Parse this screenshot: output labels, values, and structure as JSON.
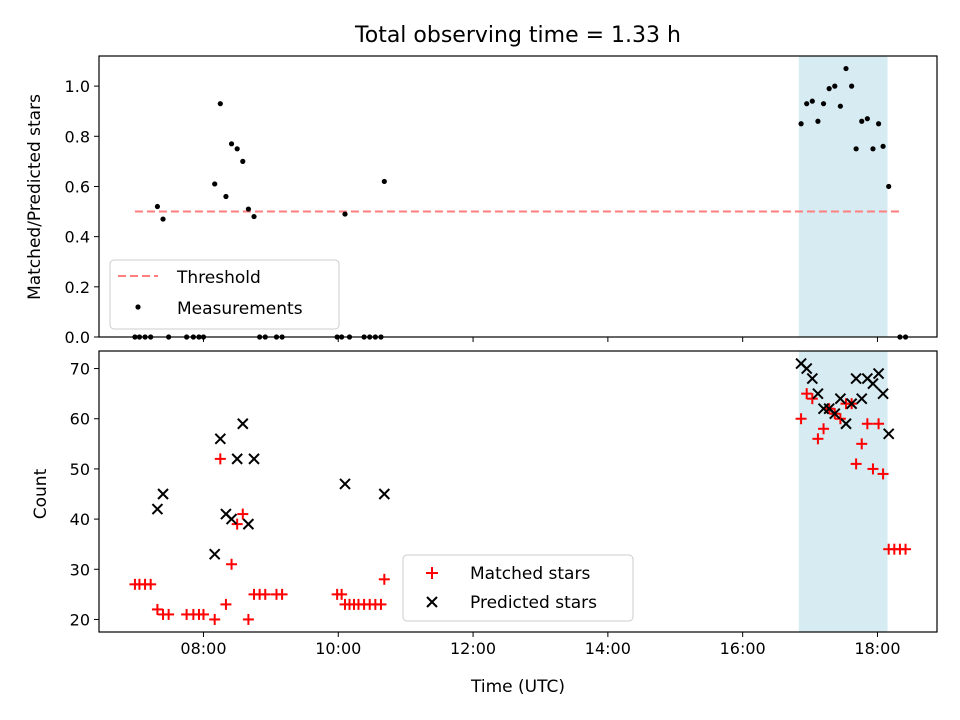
{
  "chart_data": [
    {
      "type": "scatter",
      "title": "Total observing time = 1.33 h",
      "xlabel": "",
      "ylabel": "Matched/Predicted stars",
      "xlim": [
        "06:27",
        "18:53"
      ],
      "ylim": [
        0,
        1.12
      ],
      "yticks": [
        "0.0",
        "0.2",
        "0.4",
        "0.6",
        "0.8",
        "1.0"
      ],
      "xticks": [
        "08:00",
        "10:00",
        "12:00",
        "14:00",
        "16:00",
        "18:00"
      ],
      "xtick_labels_shown": false,
      "shaded_span": [
        "16:50",
        "18:09"
      ],
      "shaded_color": "#add8e6",
      "threshold": {
        "name": "Threshold",
        "y": 0.5,
        "x_start": "06:59",
        "x_end": "18:21",
        "color": "#ff7f7f",
        "style": "dashed"
      },
      "series": [
        {
          "name": "Measurements",
          "color": "#000000",
          "marker": "dot",
          "points": [
            [
              "06:59",
              0
            ],
            [
              "07:03",
              0
            ],
            [
              "07:08",
              0
            ],
            [
              "07:13",
              0
            ],
            [
              "07:19",
              0.52
            ],
            [
              "07:24",
              0.47
            ],
            [
              "07:29",
              0
            ],
            [
              "07:45",
              0
            ],
            [
              "07:51",
              0
            ],
            [
              "07:56",
              0
            ],
            [
              "08:00",
              0
            ],
            [
              "08:10",
              0.61
            ],
            [
              "08:15",
              0.93
            ],
            [
              "08:20",
              0.56
            ],
            [
              "08:25",
              0.77
            ],
            [
              "08:30",
              0.75
            ],
            [
              "08:35",
              0.7
            ],
            [
              "08:40",
              0.51
            ],
            [
              "08:45",
              0.48
            ],
            [
              "08:50",
              0
            ],
            [
              "08:55",
              0
            ],
            [
              "09:05",
              0
            ],
            [
              "09:10",
              0
            ],
            [
              "09:59",
              0
            ],
            [
              "10:03",
              0
            ],
            [
              "10:06",
              0.49
            ],
            [
              "10:10",
              0
            ],
            [
              "10:23",
              0
            ],
            [
              "10:28",
              0
            ],
            [
              "10:33",
              0
            ],
            [
              "10:38",
              0
            ],
            [
              "10:41",
              0.62
            ],
            [
              "16:52",
              0.85
            ],
            [
              "16:57",
              0.93
            ],
            [
              "17:02",
              0.94
            ],
            [
              "17:07",
              0.86
            ],
            [
              "17:12",
              0.93
            ],
            [
              "17:17",
              0.99
            ],
            [
              "17:22",
              1.0
            ],
            [
              "17:27",
              0.92
            ],
            [
              "17:32",
              1.07
            ],
            [
              "17:37",
              1.0
            ],
            [
              "17:41",
              0.75
            ],
            [
              "17:46",
              0.86
            ],
            [
              "17:51",
              0.87
            ],
            [
              "17:56",
              0.75
            ],
            [
              "18:01",
              0.85
            ],
            [
              "18:05",
              0.76
            ],
            [
              "18:10",
              0.6
            ],
            [
              "18:20",
              0
            ],
            [
              "18:25",
              0
            ]
          ]
        }
      ],
      "legend": {
        "position": "lower-left",
        "entries": [
          "Threshold",
          "Measurements"
        ]
      }
    },
    {
      "type": "scatter",
      "title": "",
      "xlabel": "Time (UTC)",
      "ylabel": "Count",
      "xlim": [
        "06:27",
        "18:53"
      ],
      "ylim": [
        17.5,
        73.5
      ],
      "yticks": [
        "20",
        "30",
        "40",
        "50",
        "60",
        "70"
      ],
      "xticks": [
        "08:00",
        "10:00",
        "12:00",
        "14:00",
        "16:00",
        "18:00"
      ],
      "shaded_span": [
        "16:50",
        "18:09"
      ],
      "shaded_color": "#add8e6",
      "series": [
        {
          "name": "Matched stars",
          "color": "#ff0000",
          "marker": "plus",
          "points": [
            [
              "06:59",
              27
            ],
            [
              "07:03",
              27
            ],
            [
              "07:08",
              27
            ],
            [
              "07:13",
              27
            ],
            [
              "07:19",
              22
            ],
            [
              "07:24",
              21
            ],
            [
              "07:29",
              21
            ],
            [
              "07:45",
              21
            ],
            [
              "07:51",
              21
            ],
            [
              "07:56",
              21
            ],
            [
              "08:00",
              21
            ],
            [
              "08:10",
              20
            ],
            [
              "08:15",
              52
            ],
            [
              "08:20",
              23
            ],
            [
              "08:25",
              31
            ],
            [
              "08:30",
              39
            ],
            [
              "08:35",
              41
            ],
            [
              "08:40",
              20
            ],
            [
              "08:45",
              25
            ],
            [
              "08:50",
              25
            ],
            [
              "08:55",
              25
            ],
            [
              "09:05",
              25
            ],
            [
              "09:10",
              25
            ],
            [
              "09:59",
              25
            ],
            [
              "10:03",
              25
            ],
            [
              "10:06",
              23
            ],
            [
              "10:10",
              23
            ],
            [
              "10:14",
              23
            ],
            [
              "10:18",
              23
            ],
            [
              "10:23",
              23
            ],
            [
              "10:28",
              23
            ],
            [
              "10:33",
              23
            ],
            [
              "10:38",
              23
            ],
            [
              "10:41",
              28
            ],
            [
              "16:52",
              60
            ],
            [
              "16:57",
              65
            ],
            [
              "17:02",
              64
            ],
            [
              "17:07",
              56
            ],
            [
              "17:12",
              58
            ],
            [
              "17:17",
              62
            ],
            [
              "17:22",
              61
            ],
            [
              "17:27",
              60
            ],
            [
              "17:32",
              63
            ],
            [
              "17:37",
              63
            ],
            [
              "17:41",
              51
            ],
            [
              "17:46",
              55
            ],
            [
              "17:51",
              59
            ],
            [
              "17:56",
              50
            ],
            [
              "18:01",
              59
            ],
            [
              "18:05",
              49
            ],
            [
              "18:10",
              34
            ],
            [
              "18:15",
              34
            ],
            [
              "18:20",
              34
            ],
            [
              "18:25",
              34
            ]
          ]
        },
        {
          "name": "Predicted stars",
          "color": "#000000",
          "marker": "x",
          "points": [
            [
              "07:19",
              42
            ],
            [
              "07:24",
              45
            ],
            [
              "08:10",
              33
            ],
            [
              "08:15",
              56
            ],
            [
              "08:20",
              41
            ],
            [
              "08:25",
              40
            ],
            [
              "08:30",
              52
            ],
            [
              "08:35",
              59
            ],
            [
              "08:40",
              39
            ],
            [
              "08:45",
              52
            ],
            [
              "10:06",
              47
            ],
            [
              "10:41",
              45
            ],
            [
              "16:52",
              71
            ],
            [
              "16:57",
              70
            ],
            [
              "17:02",
              68
            ],
            [
              "17:07",
              65
            ],
            [
              "17:12",
              62
            ],
            [
              "17:17",
              62
            ],
            [
              "17:22",
              61
            ],
            [
              "17:27",
              64
            ],
            [
              "17:32",
              59
            ],
            [
              "17:37",
              63
            ],
            [
              "17:41",
              68
            ],
            [
              "17:46",
              64
            ],
            [
              "17:51",
              68
            ],
            [
              "17:56",
              67
            ],
            [
              "18:01",
              69
            ],
            [
              "18:05",
              65
            ],
            [
              "18:10",
              57
            ]
          ]
        }
      ],
      "legend": {
        "position": "lower-center",
        "entries": [
          "Matched stars",
          "Predicted stars"
        ]
      }
    }
  ]
}
